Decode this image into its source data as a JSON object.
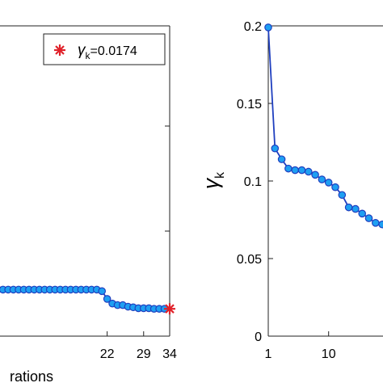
{
  "chart_data": [
    {
      "type": "line",
      "xlabel": "rations",
      "ylabel": "",
      "x_ticks": [
        "22",
        "29",
        "34"
      ],
      "x_tick_values": [
        22,
        29,
        34
      ],
      "xlim": [
        0.5,
        34
      ],
      "ylim": [
        0,
        1
      ],
      "grid": false,
      "legend_position": "top-right",
      "legend_label": "γ",
      "legend_subscript": "k",
      "legend_value": "=0.0174",
      "colors": {
        "line": "#1f3fbf",
        "marker_fill": "#1e9ff2",
        "highlight": "#e0222a"
      },
      "series": [
        {
          "x": [
            1,
            2,
            3,
            4,
            5,
            6,
            7,
            8,
            9,
            10,
            11,
            12,
            13,
            14,
            15,
            16,
            17,
            18,
            19,
            20,
            21,
            22,
            23,
            24,
            25,
            26,
            27,
            28,
            29,
            30,
            31,
            32,
            33
          ],
          "y": [
            0.15,
            0.15,
            0.15,
            0.15,
            0.15,
            0.15,
            0.15,
            0.15,
            0.15,
            0.15,
            0.15,
            0.15,
            0.15,
            0.15,
            0.15,
            0.15,
            0.15,
            0.15,
            0.15,
            0.15,
            0.145,
            0.12,
            0.105,
            0.1,
            0.1,
            0.095,
            0.093,
            0.09,
            0.09,
            0.09,
            0.088,
            0.088,
            0.088
          ]
        }
      ],
      "highlight_point": {
        "x": 34,
        "y": 0.088
      }
    },
    {
      "type": "line",
      "xlabel": "",
      "ylabel": "γ",
      "ylabel_subscript": "k",
      "x_ticks": [
        "1",
        "10"
      ],
      "y_ticks": [
        "0",
        "0.05",
        "0.1",
        "0.15",
        "0.2"
      ],
      "y_tick_values": [
        0,
        0.05,
        0.1,
        0.15,
        0.2
      ],
      "ylim": [
        0,
        0.2
      ],
      "grid": false,
      "colors": {
        "line": "#1f3fbf",
        "marker_fill": "#1e9ff2"
      },
      "series": [
        {
          "x": [
            1,
            2,
            3,
            4,
            5,
            6,
            7,
            8,
            9,
            10,
            11,
            12,
            13,
            14,
            15,
            16,
            17,
            18,
            19
          ],
          "y": [
            0.199,
            0.121,
            0.114,
            0.108,
            0.107,
            0.107,
            0.106,
            0.104,
            0.101,
            0.099,
            0.096,
            0.091,
            0.083,
            0.082,
            0.079,
            0.076,
            0.073,
            0.072,
            0.07
          ]
        }
      ]
    }
  ]
}
